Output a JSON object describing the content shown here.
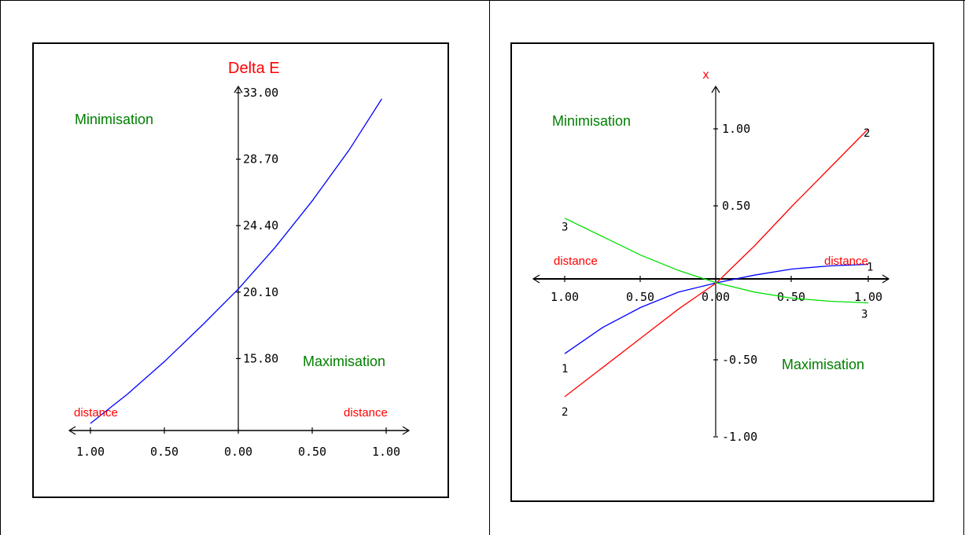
{
  "colors": {
    "title_red": "#ff0000",
    "region_green": "#008000",
    "curve_blue": "#0000ff",
    "curve_red": "#ff0000",
    "curve_green": "#00e000",
    "axis": "#000000"
  },
  "left_panel": {
    "y_axis_title": "Delta E",
    "min_label": "Minimisation",
    "max_label": "Maximisation",
    "distance_left": "distance",
    "distance_right": "distance"
  },
  "right_panel": {
    "y_axis_title": "x",
    "min_label": "Minimisation",
    "max_label": "Maximisation",
    "distance_left": "distance",
    "distance_right": "distance"
  },
  "chart_data": [
    {
      "type": "line",
      "title": "",
      "ylabel": "Delta E",
      "xlabel": "distance",
      "x_tick_labels": [
        "1.00",
        "0.50",
        "0.00",
        "0.50",
        "1.00"
      ],
      "x_tick_values": [
        -1.0,
        -0.5,
        0.0,
        0.5,
        1.0
      ],
      "y_tick_labels": [
        "15.80",
        "20.10",
        "24.40",
        "28.70",
        "33.00"
      ],
      "y_tick_values": [
        15.8,
        20.1,
        24.4,
        28.7,
        33.0
      ],
      "xlim": [
        -1.0,
        1.0
      ],
      "ylim": [
        11.5,
        33.0
      ],
      "annotations": [
        "Minimisation",
        "Maximisation"
      ],
      "series": [
        {
          "color": "#0000ff",
          "x": [
            -1.0,
            -0.75,
            -0.5,
            -0.25,
            0.0,
            0.25,
            0.5,
            0.75,
            0.97
          ],
          "y": [
            11.6,
            13.5,
            15.6,
            17.9,
            20.3,
            23.0,
            26.0,
            29.3,
            32.6
          ]
        }
      ]
    },
    {
      "type": "line",
      "title": "",
      "ylabel": "x",
      "xlabel": "distance",
      "x_tick_labels": [
        "1.00",
        "0.50",
        "0.00",
        "0.50",
        "1.00"
      ],
      "x_tick_values": [
        -1.0,
        -0.5,
        0.0,
        0.5,
        1.0
      ],
      "y_tick_labels": [
        "1.00",
        "0.50",
        "-0.50",
        "-1.00"
      ],
      "y_tick_values": [
        1.0,
        0.5,
        -0.5,
        -1.0
      ],
      "xlim": [
        -1.0,
        1.0
      ],
      "ylim": [
        -1.0,
        1.0
      ],
      "annotations": [
        "Minimisation",
        "Maximisation"
      ],
      "series": [
        {
          "name": "1",
          "color": "#0000ff",
          "x": [
            -1.0,
            -0.75,
            -0.5,
            -0.25,
            0.0,
            0.25,
            0.5,
            0.75,
            1.0
          ],
          "y": [
            -0.46,
            -0.29,
            -0.16,
            -0.06,
            0.0,
            0.05,
            0.09,
            0.11,
            0.12
          ]
        },
        {
          "name": "2",
          "color": "#ff0000",
          "x": [
            -1.0,
            -0.75,
            -0.5,
            -0.25,
            0.0,
            0.25,
            0.5,
            0.75,
            1.0
          ],
          "y": [
            -0.74,
            -0.55,
            -0.36,
            -0.17,
            0.0,
            0.24,
            0.5,
            0.75,
            1.0
          ]
        },
        {
          "name": "3",
          "color": "#00e000",
          "x": [
            -1.0,
            -0.75,
            -0.5,
            -0.25,
            0.0,
            0.25,
            0.5,
            0.75,
            1.0
          ],
          "y": [
            0.42,
            0.3,
            0.18,
            0.08,
            0.0,
            -0.06,
            -0.1,
            -0.12,
            -0.13
          ]
        }
      ]
    }
  ]
}
